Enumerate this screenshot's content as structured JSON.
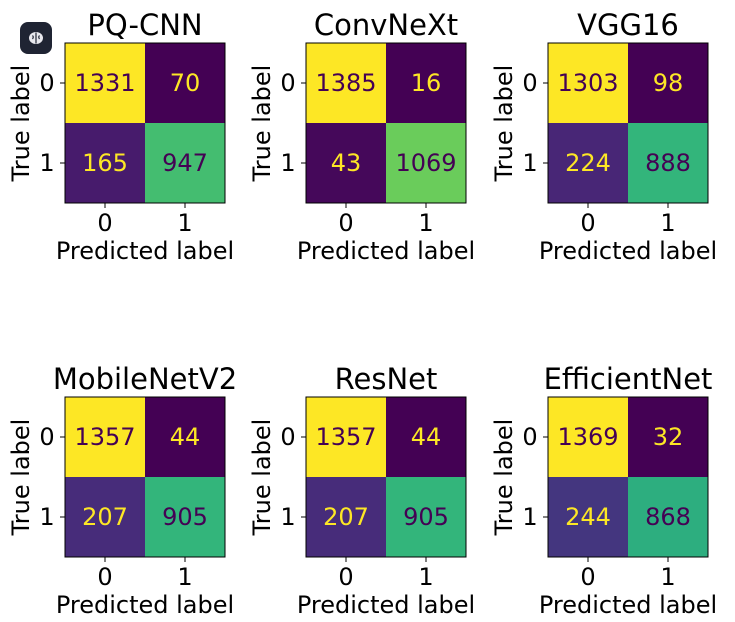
{
  "app_icon": "brain-icon",
  "colormap": {
    "name": "viridis",
    "stops": [
      "#440154",
      "#482878",
      "#3e4989",
      "#31688e",
      "#26828e",
      "#1f9e89",
      "#35b779",
      "#6ece58",
      "#b5de2b",
      "#fde725"
    ]
  },
  "chart_data": [
    {
      "type": "heatmap",
      "title": "PQ-CNN",
      "xlabel": "Predicted label",
      "ylabel": "True label",
      "x_ticks": [
        "0",
        "1"
      ],
      "y_ticks": [
        "0",
        "1"
      ],
      "values": [
        [
          1331,
          70
        ],
        [
          165,
          947
        ]
      ]
    },
    {
      "type": "heatmap",
      "title": "ConvNeXt",
      "xlabel": "Predicted label",
      "ylabel": "True label",
      "x_ticks": [
        "0",
        "1"
      ],
      "y_ticks": [
        "0",
        "1"
      ],
      "values": [
        [
          1385,
          16
        ],
        [
          43,
          1069
        ]
      ]
    },
    {
      "type": "heatmap",
      "title": "VGG16",
      "xlabel": "Predicted label",
      "ylabel": "True label",
      "x_ticks": [
        "0",
        "1"
      ],
      "y_ticks": [
        "0",
        "1"
      ],
      "values": [
        [
          1303,
          98
        ],
        [
          224,
          888
        ]
      ]
    },
    {
      "type": "heatmap",
      "title": "MobileNetV2",
      "xlabel": "Predicted label",
      "ylabel": "True label",
      "x_ticks": [
        "0",
        "1"
      ],
      "y_ticks": [
        "0",
        "1"
      ],
      "values": [
        [
          1357,
          44
        ],
        [
          207,
          905
        ]
      ]
    },
    {
      "type": "heatmap",
      "title": "ResNet",
      "xlabel": "Predicted label",
      "ylabel": "True label",
      "x_ticks": [
        "0",
        "1"
      ],
      "y_ticks": [
        "0",
        "1"
      ],
      "values": [
        [
          1357,
          44
        ],
        [
          207,
          905
        ]
      ]
    },
    {
      "type": "heatmap",
      "title": "EfficientNet",
      "xlabel": "Predicted label",
      "ylabel": "True label",
      "x_ticks": [
        "0",
        "1"
      ],
      "y_ticks": [
        "0",
        "1"
      ],
      "values": [
        [
          1369,
          32
        ],
        [
          244,
          868
        ]
      ]
    }
  ]
}
